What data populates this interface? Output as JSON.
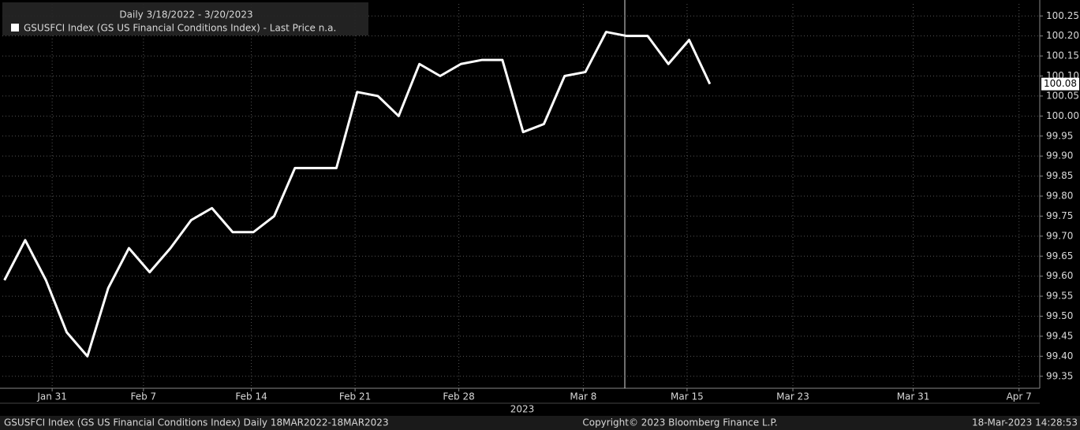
{
  "chart_data": {
    "type": "line",
    "legend_title": "Daily 3/18/2022 - 3/20/2023",
    "x_axis_label": "2023",
    "footer_left": "GSUSFCI Index (GS US Financial Conditions Index)  Daily 18MAR2022-18MAR2023",
    "footer_center": "Copyright© 2023 Bloomberg Finance L.P.",
    "footer_right": "18-Mar-2023 14:28:53",
    "x": [
      0,
      1,
      2,
      3,
      4,
      5,
      6,
      7,
      8,
      9,
      10,
      11,
      12,
      13,
      14,
      15,
      16,
      17,
      18,
      19,
      20,
      21,
      22,
      23,
      24,
      25,
      26,
      27,
      28,
      29,
      30,
      31,
      32,
      33,
      34
    ],
    "series": [
      {
        "name": "GSUSFCI Index (GS US Financial Conditions Index) - Last Price n.a.",
        "color": "#ffffff",
        "values": [
          99.59,
          99.69,
          99.59,
          99.46,
          99.4,
          99.57,
          99.67,
          99.61,
          99.67,
          99.74,
          99.77,
          99.71,
          99.71,
          99.75,
          99.87,
          99.87,
          99.87,
          100.06,
          100.05,
          100.0,
          100.13,
          100.1,
          100.13,
          100.14,
          100.14,
          99.96,
          99.98,
          100.1,
          100.11,
          100.21,
          100.2,
          100.2,
          100.13,
          100.19,
          100.08
        ]
      }
    ],
    "xlim": [
      -0.1,
      49.9
    ],
    "xticks": [
      {
        "value": 2.3,
        "label": "Jan 31"
      },
      {
        "value": 6.7,
        "label": "Feb 7"
      },
      {
        "value": 11.9,
        "label": "Feb 14"
      },
      {
        "value": 16.9,
        "label": "Feb 21"
      },
      {
        "value": 21.9,
        "label": "Feb 28"
      },
      {
        "value": 27.9,
        "label": "Mar 8"
      },
      {
        "value": 32.9,
        "label": "Mar 15"
      },
      {
        "value": 38,
        "label": "Mar 23"
      },
      {
        "value": 43.8,
        "label": "Mar 31"
      },
      {
        "value": 48.9,
        "label": "Apr 7"
      }
    ],
    "ylim": [
      99.32,
      100.28
    ],
    "yticks": [
      99.35,
      {
        "value": 99.4,
        "label": "99.40"
      },
      99.45,
      {
        "value": 99.5,
        "label": "99.50"
      },
      99.55,
      {
        "value": 99.6,
        "label": "99.60"
      },
      99.65,
      {
        "value": 99.7,
        "label": "99.70"
      },
      99.75,
      {
        "value": 99.8,
        "label": "99.80"
      },
      99.85,
      {
        "value": 99.9,
        "label": "99.90"
      },
      99.95,
      {
        "value": 100,
        "label": "100.00"
      },
      100.05,
      {
        "value": 100.1,
        "label": "100.10"
      },
      100.15,
      {
        "value": 100.2,
        "label": "100.20"
      },
      100.25
    ],
    "grid": true
  }
}
